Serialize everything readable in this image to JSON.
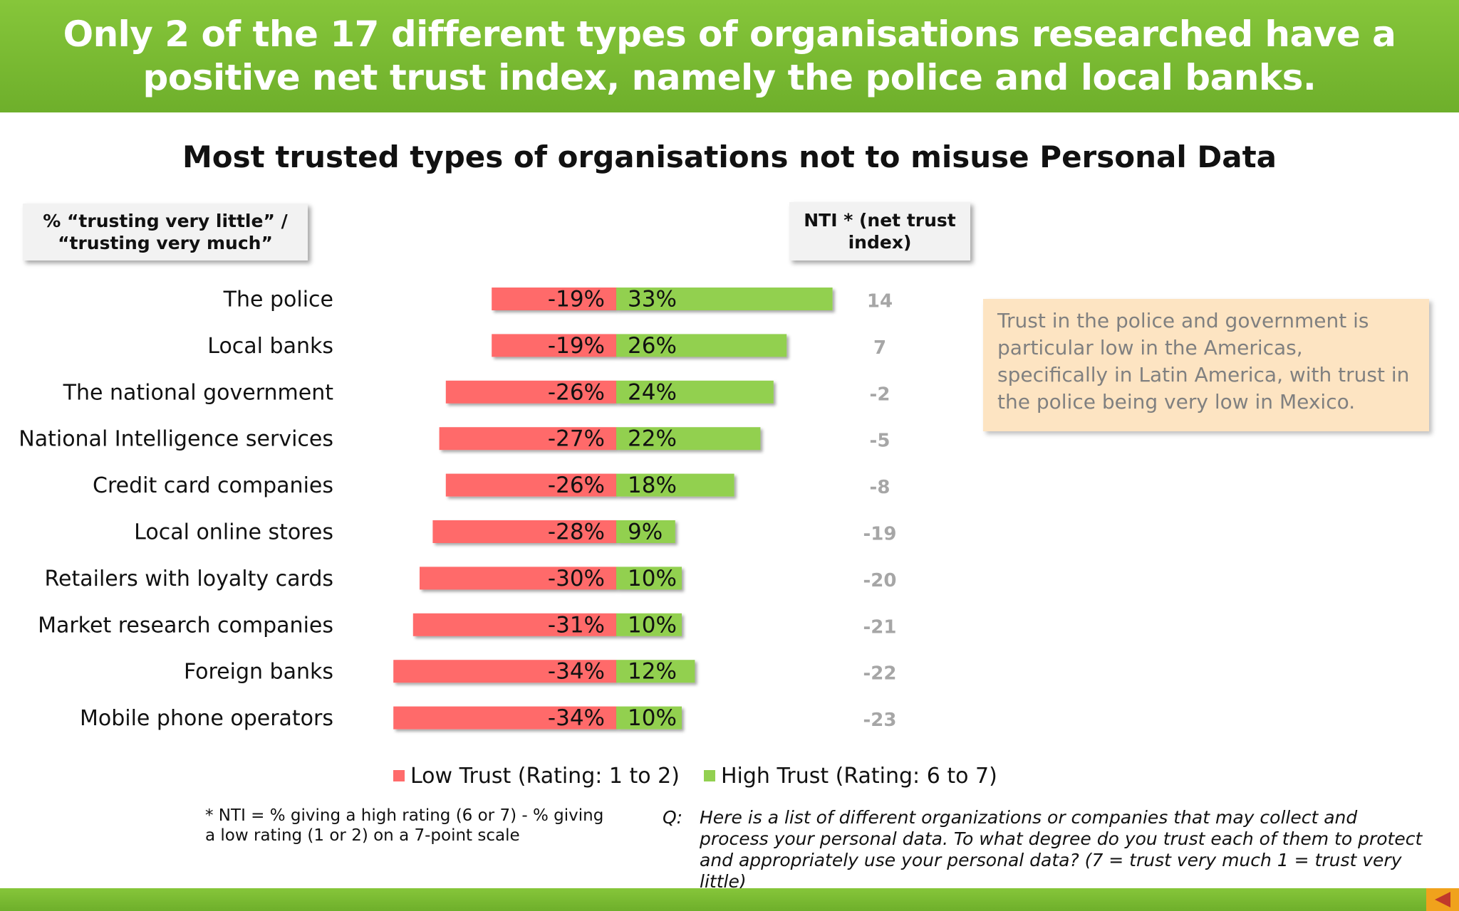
{
  "header": {
    "title": "Only 2 of the 17 different types of organisations researched have a positive net trust index, namely the police and local banks."
  },
  "column_headers": {
    "left": "% “trusting very  little” / “trusting very much”",
    "nti": "NTI * (net trust index)"
  },
  "callout": {
    "text": "Trust in the police and government is particular low in the Americas, specifically in Latin America, with trust in the police being very low in Mexico."
  },
  "footnote": "* NTI = % giving a high rating (6 or 7) - % giving a low rating (1 or 2) on a 7-point scale",
  "question": {
    "label": "Q:",
    "text": "Here is a list of different organizations or companies that may collect and process your personal data.  To what degree do you trust each of them to protect and appropriately use your personal data? (7 = trust very much 1 = trust very little)"
  },
  "colors": {
    "header_green": "#7bbd33",
    "low_trust": "#ff6b6b",
    "high_trust": "#92d050",
    "nti_text": "#a6a6a6",
    "callout_bg": "#fde4c2",
    "nav_back": "#f0a21c"
  },
  "icons": {
    "nav_back": "triangle-left-icon"
  },
  "chart_data": {
    "type": "bar",
    "orientation": "horizontal-diverging",
    "title": "Most trusted types of organisations not to misuse Personal Data",
    "categories": [
      "The police",
      "Local banks",
      "The national government",
      "National Intelligence services",
      "Credit card companies",
      "Local online stores",
      "Retailers with loyalty cards",
      "Market research companies",
      "Foreign banks",
      "Mobile phone operators"
    ],
    "series": [
      {
        "name": "Low Trust (Rating: 1 to 2)",
        "color": "#ff6b6b",
        "values": [
          -19,
          -19,
          -26,
          -27,
          -26,
          -28,
          -30,
          -31,
          -34,
          -34
        ],
        "labels": [
          "-19%",
          "-19%",
          "-26%",
          "-27%",
          "-26%",
          "-28%",
          "-30%",
          "-31%",
          "-34%",
          "-34%"
        ]
      },
      {
        "name": "High Trust (Rating: 6 to 7)",
        "color": "#92d050",
        "values": [
          33,
          26,
          24,
          22,
          18,
          9,
          10,
          10,
          12,
          10
        ],
        "labels": [
          "33%",
          "26%",
          "24%",
          "22%",
          "18%",
          "9%",
          "10%",
          "10%",
          "12%",
          "10%"
        ]
      }
    ],
    "nti": [
      "14",
      "7",
      "-2",
      "-5",
      "-8",
      "-19",
      "-20",
      "-21",
      "-22",
      "-23"
    ],
    "legend_position": "bottom",
    "grid": false
  }
}
